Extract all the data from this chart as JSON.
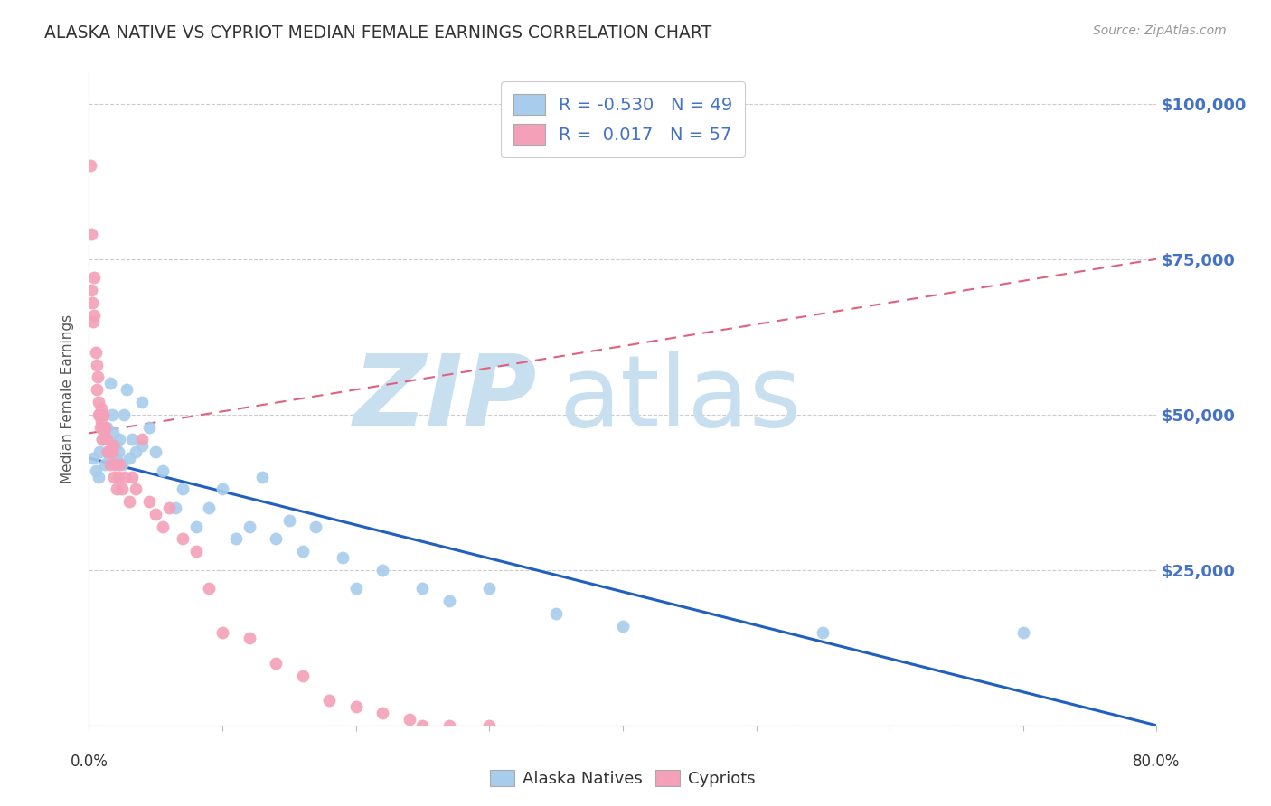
{
  "title": "ALASKA NATIVE VS CYPRIOT MEDIAN FEMALE EARNINGS CORRELATION CHART",
  "source": "Source: ZipAtlas.com",
  "ylabel": "Median Female Earnings",
  "y_ticks": [
    0,
    25000,
    50000,
    75000,
    100000
  ],
  "x_range": [
    0.0,
    80.0
  ],
  "y_range": [
    0,
    105000
  ],
  "alaska_color": "#A8CCEC",
  "cypriot_color": "#F4A0B8",
  "alaska_line_color": "#2060C0",
  "cypriot_line_color": "#E06080",
  "background_color": "#FFFFFF",
  "grid_color": "#CCCCCC",
  "title_color": "#333333",
  "axis_label_color": "#4472C4",
  "alaska_scatter_x": [
    0.3,
    0.5,
    0.7,
    0.8,
    1.0,
    1.2,
    1.3,
    1.4,
    1.5,
    1.6,
    1.7,
    1.8,
    2.0,
    2.1,
    2.2,
    2.3,
    2.5,
    2.6,
    2.8,
    3.0,
    3.2,
    3.5,
    4.0,
    4.0,
    4.5,
    5.0,
    5.5,
    6.5,
    7.0,
    8.0,
    9.0,
    10.0,
    11.0,
    12.0,
    13.0,
    14.0,
    15.0,
    16.0,
    17.0,
    19.0,
    20.0,
    22.0,
    25.0,
    27.0,
    30.0,
    35.0,
    40.0,
    55.0,
    70.0
  ],
  "alaska_scatter_y": [
    43000,
    41000,
    40000,
    44000,
    46000,
    42000,
    48000,
    44000,
    43000,
    55000,
    50000,
    47000,
    45000,
    43000,
    44000,
    46000,
    42000,
    50000,
    54000,
    43000,
    46000,
    44000,
    52000,
    45000,
    48000,
    44000,
    41000,
    35000,
    38000,
    32000,
    35000,
    38000,
    30000,
    32000,
    40000,
    30000,
    33000,
    28000,
    32000,
    27000,
    22000,
    25000,
    22000,
    20000,
    22000,
    18000,
    16000,
    15000,
    15000
  ],
  "cypriot_scatter_x": [
    0.1,
    0.15,
    0.2,
    0.25,
    0.3,
    0.35,
    0.4,
    0.5,
    0.55,
    0.6,
    0.65,
    0.7,
    0.75,
    0.8,
    0.85,
    0.9,
    0.95,
    1.0,
    1.0,
    1.05,
    1.1,
    1.2,
    1.3,
    1.4,
    1.5,
    1.6,
    1.7,
    1.8,
    1.9,
    2.0,
    2.1,
    2.2,
    2.3,
    2.5,
    2.7,
    3.0,
    3.2,
    3.5,
    4.0,
    4.5,
    5.0,
    5.5,
    6.0,
    7.0,
    8.0,
    9.0,
    10.0,
    12.0,
    14.0,
    16.0,
    18.0,
    20.0,
    22.0,
    24.0,
    25.0,
    27.0,
    30.0
  ],
  "cypriot_scatter_y": [
    90000,
    79000,
    70000,
    68000,
    65000,
    72000,
    66000,
    60000,
    58000,
    54000,
    56000,
    50000,
    52000,
    50000,
    48000,
    49000,
    51000,
    48000,
    46000,
    50000,
    47000,
    48000,
    46000,
    44000,
    44000,
    42000,
    44000,
    45000,
    40000,
    42000,
    38000,
    40000,
    42000,
    38000,
    40000,
    36000,
    40000,
    38000,
    46000,
    36000,
    34000,
    32000,
    35000,
    30000,
    28000,
    22000,
    15000,
    14000,
    10000,
    8000,
    4000,
    3000,
    2000,
    1000,
    0,
    0,
    0
  ]
}
